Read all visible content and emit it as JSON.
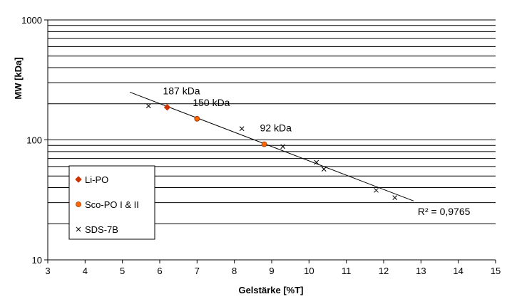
{
  "chart_data": {
    "type": "scatter",
    "xlabel": "Gelstärke [%T]",
    "ylabel": "MW [kDa]",
    "xlim": [
      3,
      15
    ],
    "ylim": [
      10,
      1000
    ],
    "y_scale": "log",
    "x_ticks": [
      "3",
      "4",
      "5",
      "6",
      "7",
      "8",
      "9",
      "10",
      "11",
      "12",
      "13",
      "14",
      "15"
    ],
    "y_ticks": [
      "10",
      "100",
      "1000"
    ],
    "grid": "horizontal",
    "legend_position": "bottom-left",
    "series": [
      {
        "name": "Li-PO",
        "marker": "diamond",
        "color": "#CC3300",
        "points": [
          [
            6.2,
            187
          ]
        ]
      },
      {
        "name": "Sco-PO I & II",
        "marker": "circle",
        "color": "#FF6600",
        "points": [
          [
            7.0,
            150
          ],
          [
            8.8,
            92
          ]
        ]
      },
      {
        "name": "SDS-7B",
        "marker": "x",
        "color": "#000000",
        "points": [
          [
            5.7,
            192
          ],
          [
            8.2,
            124
          ],
          [
            9.3,
            88
          ],
          [
            10.2,
            65
          ],
          [
            10.4,
            57
          ],
          [
            11.8,
            38
          ],
          [
            12.3,
            33
          ]
        ]
      }
    ],
    "trendline": {
      "x": [
        5.2,
        12.8
      ],
      "y": [
        250,
        31
      ],
      "r2_label": "R² = 0,9765"
    },
    "annotations": [
      {
        "text": "187 kDa",
        "x": 6.2,
        "y": 187
      },
      {
        "text": "150 kDa",
        "x": 7.0,
        "y": 150
      },
      {
        "text": "92 kDa",
        "x": 8.8,
        "y": 92
      }
    ]
  }
}
